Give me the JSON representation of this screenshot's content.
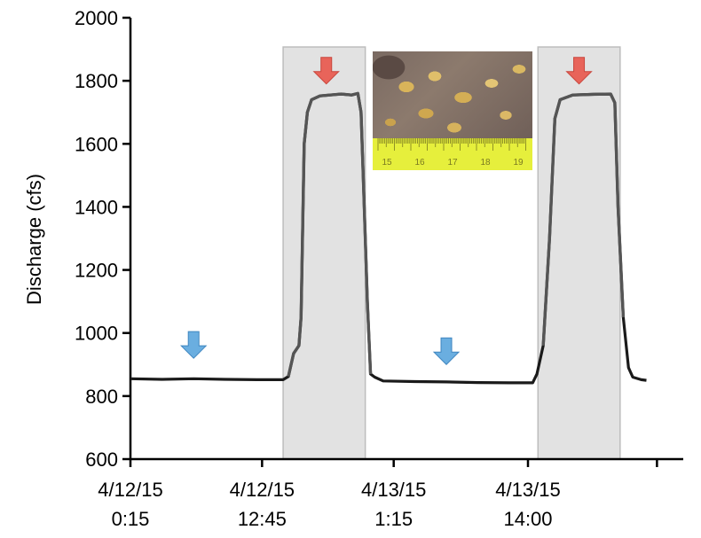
{
  "chart_data": {
    "type": "line",
    "ylabel": "Discharge (cfs)",
    "xlabel": "",
    "ylim": [
      600,
      2000
    ],
    "yticks": [
      600,
      800,
      1000,
      1200,
      1400,
      1600,
      1800,
      2000
    ],
    "xlim": [
      0,
      80
    ],
    "x_unit": "hours since 4/12/15 0:15",
    "xticks": [
      {
        "x": 0,
        "line1": "4/12/15",
        "line2": "0:15"
      },
      {
        "x": 12.5,
        "line1": "4/12/15",
        "line2": "12:45"
      },
      {
        "x": 25,
        "line1": "4/13/15",
        "line2": "1:15"
      },
      {
        "x": 37.75,
        "line1": "4/13/15",
        "line2": "14:00"
      },
      {
        "x": 50,
        "line1": "",
        "line2": ""
      },
      {
        "x": 62.5,
        "line1": "",
        "line2": ""
      }
    ],
    "grid": false,
    "series": [
      {
        "name": "",
        "color": "#000000",
        "points": [
          [
            0,
            855
          ],
          [
            3,
            853
          ],
          [
            6,
            855
          ],
          [
            9,
            853
          ],
          [
            12,
            852
          ],
          [
            14.5,
            852
          ],
          [
            15,
            862
          ],
          [
            15.5,
            935
          ],
          [
            16,
            960
          ],
          [
            16.2,
            1050
          ],
          [
            16.5,
            1600
          ],
          [
            16.8,
            1700
          ],
          [
            17.2,
            1740
          ],
          [
            18,
            1752
          ],
          [
            20,
            1758
          ],
          [
            21,
            1755
          ],
          [
            21.6,
            1760
          ],
          [
            21.9,
            1700
          ],
          [
            22.2,
            1400
          ],
          [
            22.5,
            1100
          ],
          [
            22.8,
            870
          ],
          [
            23.2,
            860
          ],
          [
            24,
            848
          ],
          [
            27,
            846
          ],
          [
            30,
            845
          ],
          [
            33,
            843
          ],
          [
            36,
            842
          ],
          [
            38.2,
            842
          ],
          [
            38.6,
            870
          ],
          [
            39.2,
            960
          ],
          [
            39.8,
            1300
          ],
          [
            40.3,
            1680
          ],
          [
            40.8,
            1740
          ],
          [
            42,
            1755
          ],
          [
            44,
            1757
          ],
          [
            45.6,
            1758
          ],
          [
            46,
            1730
          ],
          [
            46.3,
            1400
          ],
          [
            46.8,
            1050
          ],
          [
            47.3,
            890
          ],
          [
            47.7,
            860
          ],
          [
            48.5,
            852
          ],
          [
            49,
            850
          ]
        ]
      }
    ],
    "shaded_regions": [
      [
        14.5,
        22.3
      ],
      [
        38.7,
        46.5
      ]
    ],
    "annotations": [
      {
        "type": "arrow",
        "color": "#6aaee0",
        "x": 6,
        "y": 920
      },
      {
        "type": "arrow",
        "color": "#e8645a",
        "x": 18.6,
        "y": 1790
      },
      {
        "type": "arrow",
        "color": "#6aaee0",
        "x": 30,
        "y": 900
      },
      {
        "type": "arrow",
        "color": "#e8645a",
        "x": 42.6,
        "y": 1790
      }
    ],
    "inset_image": {
      "content": "photo of rock with scale ruler",
      "ruler_labels": [
        "15",
        "16",
        "17",
        "18",
        "19"
      ]
    }
  }
}
